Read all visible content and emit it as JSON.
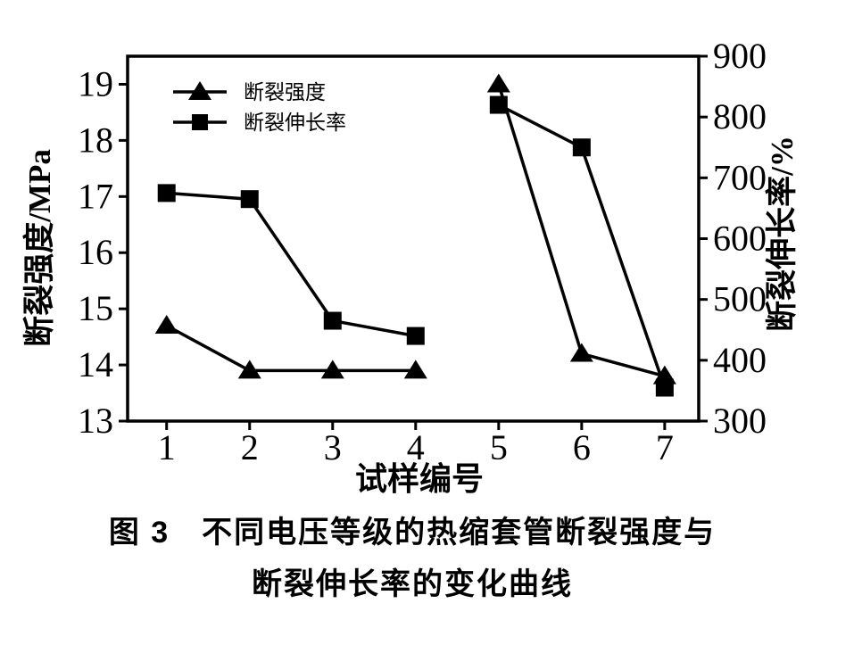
{
  "chart_data": {
    "type": "line",
    "title": "图 3　不同电压等级的热缩套管断裂强度与断裂伸长率的变化曲线",
    "xlabel": "试样编号",
    "x": [
      1,
      2,
      3,
      4,
      5,
      6,
      7
    ],
    "x_axis": {
      "min": 0.53,
      "max": 7.41,
      "ticks": [
        1,
        2,
        3,
        4,
        5,
        6,
        7
      ]
    },
    "left_axis": {
      "label": "断裂强度/MPa",
      "min": 13,
      "max": 19.5,
      "ticks": [
        13,
        14,
        15,
        16,
        17,
        18,
        19
      ]
    },
    "right_axis": {
      "label": "断裂伸长率/%",
      "min": 300,
      "max": 900,
      "ticks": [
        300,
        400,
        500,
        600,
        700,
        800,
        900
      ]
    },
    "series": [
      {
        "name": "断裂强度",
        "axis": "left",
        "marker": "triangle",
        "values": [
          14.7,
          13.9,
          13.9,
          13.9,
          19.0,
          14.2,
          13.8
        ]
      },
      {
        "name": "断裂伸长率",
        "axis": "right",
        "marker": "square",
        "values": [
          675,
          665,
          465,
          440,
          820,
          750,
          355
        ]
      }
    ],
    "segments": [
      [
        0,
        3
      ],
      [
        4,
        6
      ]
    ],
    "grid": false,
    "legend_position": "top-left-inside",
    "ink_color": "#000000",
    "background_color": "#ffffff"
  },
  "caption": {
    "line1": "图 3　不同电压等级的热缩套管断裂强度与",
    "line2": "断裂伸长率的变化曲线"
  }
}
